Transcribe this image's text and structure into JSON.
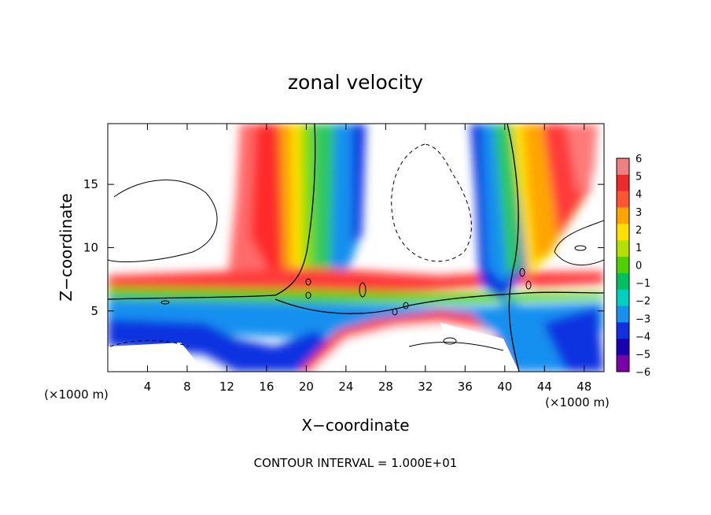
{
  "chart_data": {
    "type": "heatmap",
    "title": "zonal velocity",
    "xlabel": "X−coordinate",
    "ylabel": "Z−coordinate",
    "x_unit_left": "(×1000 m)",
    "x_unit_right": "(×1000 m)",
    "xlim": [
      0,
      50
    ],
    "ylim": [
      0.2,
      19.8
    ],
    "x_ticks": [
      4,
      8,
      12,
      16,
      20,
      24,
      28,
      32,
      36,
      40,
      44,
      48
    ],
    "y_ticks": [
      5,
      10,
      15
    ],
    "colorbar": {
      "min": -6,
      "max": 6,
      "labels": [
        "6",
        "5",
        "4",
        "3",
        "2",
        "1",
        "0",
        "−1",
        "−2",
        "−3",
        "−4",
        "−5",
        "−6"
      ],
      "colors": [
        "#f08080",
        "#ee2a2a",
        "#ff5533",
        "#ffa400",
        "#ffe000",
        "#b4e000",
        "#4fd000",
        "#00c060",
        "#00d0c0",
        "#1890f0",
        "#1030e0",
        "#1800b0",
        "#7a00a8"
      ]
    },
    "footer": "CONTOUR INTERVAL = 1.000E+01"
  }
}
